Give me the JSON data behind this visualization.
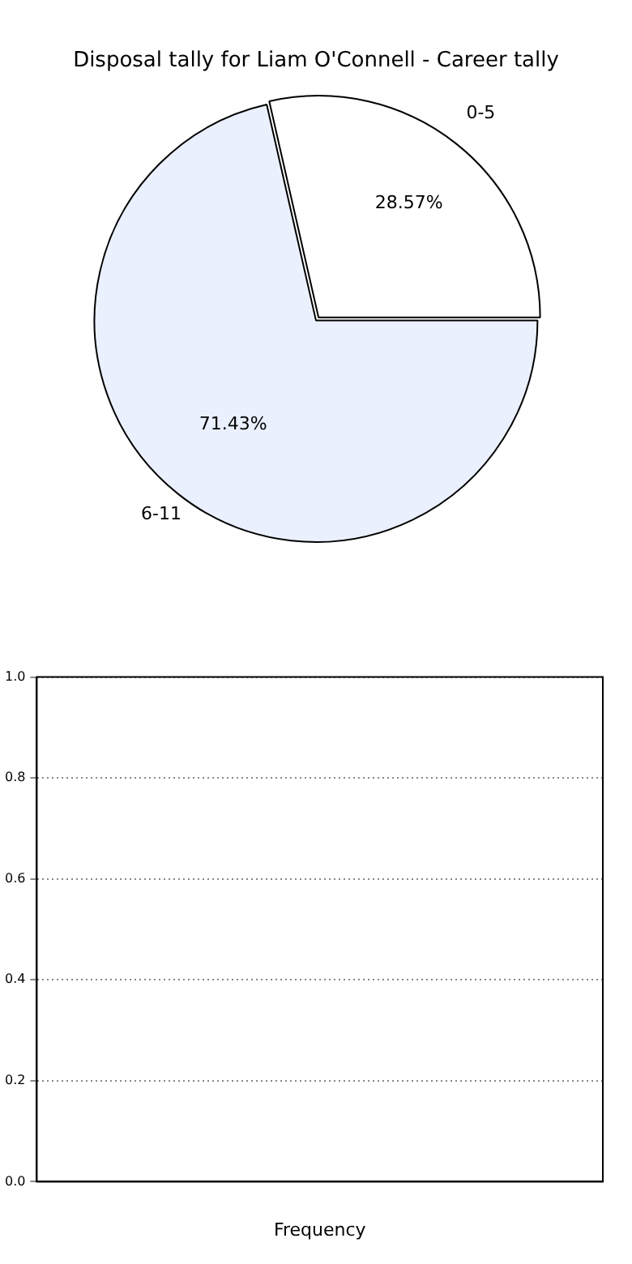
{
  "chart_data": [
    {
      "type": "pie",
      "title": "Disposal tally for Liam O'Connell - Career tally",
      "categories": [
        "0-5",
        "6-11"
      ],
      "values": [
        28.57,
        71.43
      ],
      "colors": [
        "#ffffff",
        "#eaf0fe"
      ],
      "value_labels": [
        "28.57%",
        "71.43%"
      ],
      "legend": false
    },
    {
      "type": "bar",
      "xlabel": "Frequency",
      "categories": [
        null
      ],
      "values": [
        0
      ],
      "ylim": [
        0,
        1
      ],
      "yticks": [
        {
          "value": 0,
          "label": "0.0"
        },
        {
          "value": 0.2,
          "label": "0.2"
        },
        {
          "value": 0.4,
          "label": "0.4"
        },
        {
          "value": 0.6,
          "label": "0.6"
        },
        {
          "value": 0.8,
          "label": "0.8"
        },
        {
          "value": 1,
          "label": "1.0"
        }
      ],
      "grid": "y",
      "line_style": "dotted",
      "legend": false
    }
  ]
}
